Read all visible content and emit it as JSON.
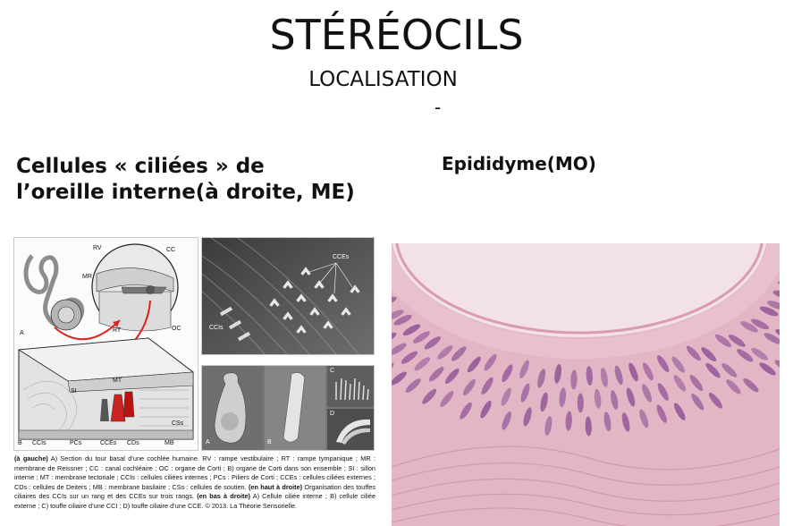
{
  "slide": {
    "title": "STÉRÉOCILS",
    "subtitle": "LOCALISATION",
    "dash": "-"
  },
  "left": {
    "heading": "Cellules « ciliées » de l’oreille interne(à droite, ME)",
    "figure_labels": {
      "rv": "RV",
      "cc": "CC",
      "mr": "MR",
      "rt": "RT",
      "oc": "OC",
      "a": "A",
      "mt": "MT",
      "si": "SI",
      "css": "CSs",
      "b": "B",
      "ccis": "CCIs",
      "pcs": "PCs",
      "cces": "CCEs",
      "cds": "CDs",
      "mb": "MB"
    },
    "sem_labels": {
      "cces": "CCEs",
      "ccis": "CCIs",
      "a": "A",
      "b": "B",
      "c": "C",
      "d": "D"
    },
    "caption": {
      "part1_bold": "(à gauche)",
      "part1": " A) Section du tour basal d’une cochlée humaine. RV : rampe vestibulaire ; RT : rampe tympanique ; MR : membrane de Reissner ; CC : canal cochléaire ; OC : organe de Corti ; B) organe de Corti dans son ensemble ; SI : sillon interne ; MT : membrane tectoriale ; CCIs : cellules ciliées internes ; PCs : Piliers de Corti ; CCEs : cellules ciliées externes ; CDs : cellules de Deiters ; MB : membrane basilaire ; CSs : cellules de soutien. ",
      "part2_bold": "(en haut à droite)",
      "part2": " Organisation des touffes ciliaires des CCIs sur un rang et des CCEs sur trois rangs. ",
      "part3_bold": "(en bas à droite)",
      "part3": " A) Cellule ciliée interne ; B) cellule ciliée externe ; C) touffe ciliaire d’une CCI ; D) touffe ciliaire d’une CCE. © 2013. La Théorie Sensorielle."
    }
  },
  "right": {
    "heading": "Epididyme(MO)"
  },
  "colors": {
    "tissue_pink": "#e7b7c8",
    "nuclei_purple": "#8e4f93",
    "stroma_pink": "#d3a7bb",
    "lumen_pale": "#f1dde4"
  },
  "icons": {
    "cochlea": "cochlea-diagram-icon",
    "corti": "organ-of-corti-diagram-icon"
  }
}
